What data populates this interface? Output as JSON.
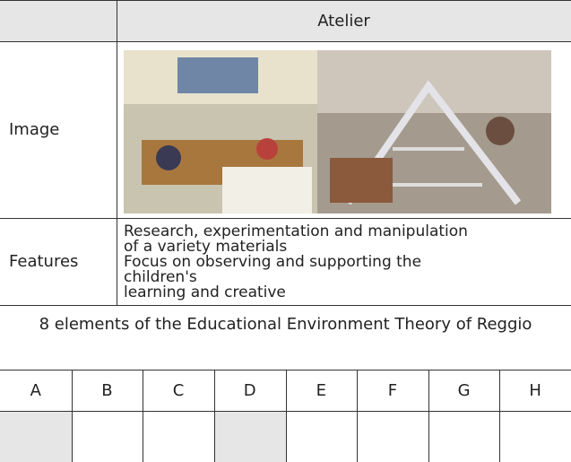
{
  "table": {
    "header": {
      "title": "Atelier"
    },
    "rows": [
      {
        "label": "Image"
      },
      {
        "label": "Features",
        "lines": [
          "Research, experimentation and manipulation",
          "of a variety materials",
          "Focus on observing and supporting the",
          "children's",
          "learning and creative"
        ]
      }
    ]
  },
  "caption": "8 elements of the Educational Environment Theory of Reggio",
  "elements": {
    "labels": [
      "A",
      "B",
      "C",
      "D",
      "E",
      "F",
      "G",
      "H"
    ],
    "highlighted": [
      0,
      3
    ]
  }
}
